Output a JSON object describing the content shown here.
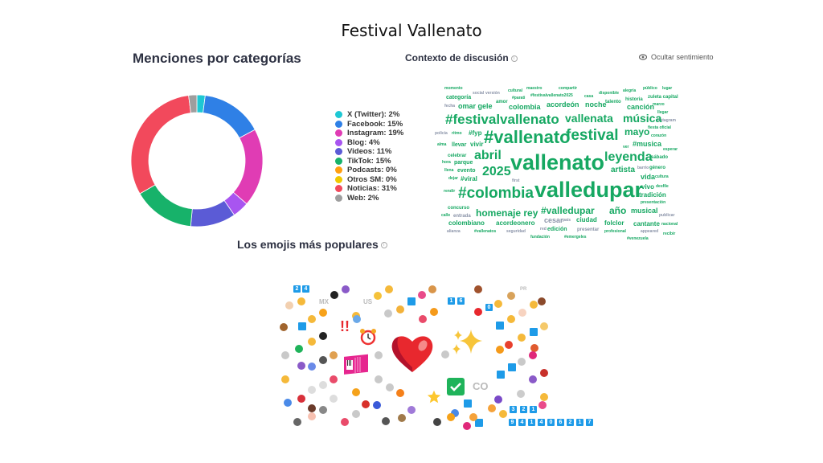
{
  "title": "Festival Vallenato",
  "mentions": {
    "title": "Menciones por categorías",
    "categories": [
      {
        "label": "X (Twitter): 2%",
        "value": 2,
        "color": "#1ec8d4"
      },
      {
        "label": "Facebook: 15%",
        "value": 15,
        "color": "#2f80e6"
      },
      {
        "label": "Instagram: 19%",
        "value": 19,
        "color": "#e03cb4"
      },
      {
        "label": "Blog: 4%",
        "value": 4,
        "color": "#a855f0"
      },
      {
        "label": "Videos: 11%",
        "value": 11,
        "color": "#5b5bd6"
      },
      {
        "label": "TikTok: 15%",
        "value": 15,
        "color": "#17b26a"
      },
      {
        "label": "Podcasts: 0%",
        "value": 0,
        "color": "#ff9f10"
      },
      {
        "label": "Otros SM: 0%",
        "value": 0,
        "color": "#f0c800"
      },
      {
        "label": "Noticias: 31%",
        "value": 31,
        "color": "#f2495c"
      },
      {
        "label": "Web: 2%",
        "value": 2,
        "color": "#9e9e9e"
      }
    ]
  },
  "context": {
    "title": "Contexto de discusión",
    "info": "i",
    "toggle_label": "Ocultar sentimiento",
    "toggle_icon": "eye-icon",
    "colors": {
      "positive": "#16a862",
      "neutral": "#8a93a8"
    },
    "words": [
      "momento",
      "categoría",
      "social",
      "versión",
      "cultural",
      "maestro",
      "amor",
      "#parati",
      "#festivalvallenato2025",
      "casa",
      "fecha",
      "omar gele",
      "colombia",
      "acordeón",
      "#festivalvallenato",
      "policía",
      "ritmo",
      "#fyp",
      "#vallenato",
      "alma",
      "llevar",
      "vivir",
      "celebrar",
      "abril",
      "hora",
      "parque",
      "vallenato",
      "llena",
      "evento",
      "2025",
      "dejar",
      "#viral",
      "first",
      "rendir",
      "#colombia",
      "valledupar",
      "concurso",
      "calle",
      "entrada",
      "homenaje rey",
      "#valledupar",
      "colombiano",
      "acordeonero",
      "cesar",
      "alianza",
      "#vallenatos",
      "seguridad",
      "red",
      "edición",
      "fundación",
      "compartir",
      "disponible",
      "alegría",
      "público",
      "lugar",
      "historia",
      "zuleta capital",
      "noche",
      "talento",
      "canción",
      "marzo",
      "llegar",
      "instagram",
      "vallenata",
      "música",
      "festival",
      "mayo",
      "fiesta oficial",
      "corazón",
      "#musica",
      "ver",
      "esperar",
      "leyenda",
      "sábado",
      "artista",
      "barrio",
      "género",
      "vida",
      "cultura",
      "vivo",
      "desfile",
      "tradición",
      "presentación",
      "año",
      "musical",
      "publicar",
      "país",
      "ciudad",
      "folclor",
      "cantante",
      "nacional",
      "presentar",
      "profesional",
      "appeared",
      "recibir",
      "#emergeles",
      "#venezuela"
    ]
  },
  "emojis": {
    "title": "Los emojis más populares",
    "info": "i",
    "keycaps": [
      "2",
      "4",
      "1",
      "6",
      "0",
      "3",
      "2",
      "1",
      "9",
      "4",
      "1",
      "4",
      "0",
      "6",
      "2",
      "1",
      "7"
    ],
    "flags": [
      "MX",
      "US",
      "CO",
      "PR"
    ],
    "featured": [
      "red-heart",
      "sparkles",
      "accordion",
      "alarm-clock",
      "check-mark-button",
      "star",
      "double-exclamation"
    ]
  }
}
